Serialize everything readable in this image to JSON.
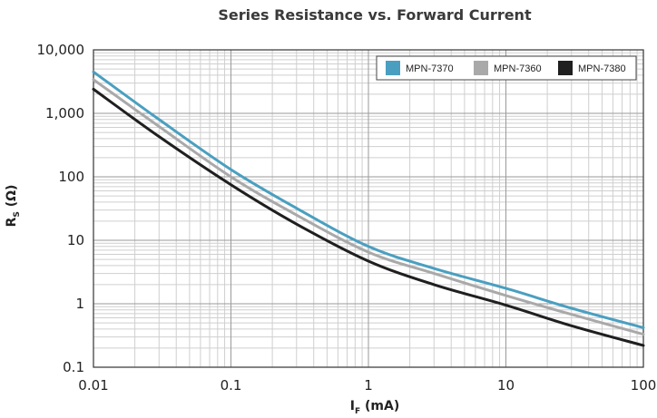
{
  "chart_data": {
    "type": "line",
    "title": "Series Resistance vs. Forward Current",
    "xlabel": {
      "main": "I",
      "sub": "F",
      "unit": " (mA)"
    },
    "ylabel": {
      "main": "R",
      "sub": "S",
      "unit": " (Ω)"
    },
    "xscale": "log",
    "yscale": "log",
    "xlim": [
      0.01,
      100
    ],
    "ylim": [
      0.1,
      10000
    ],
    "x_ticks": [
      {
        "value": 0.01,
        "label": "0.01"
      },
      {
        "value": 0.1,
        "label": "0.1"
      },
      {
        "value": 1,
        "label": "1"
      },
      {
        "value": 10,
        "label": "10"
      },
      {
        "value": 100,
        "label": "100"
      }
    ],
    "y_ticks": [
      {
        "value": 0.1,
        "label": "0.1"
      },
      {
        "value": 1,
        "label": "1"
      },
      {
        "value": 10,
        "label": "10"
      },
      {
        "value": 100,
        "label": "100"
      },
      {
        "value": 1000,
        "label": "1,000"
      },
      {
        "value": 10000,
        "label": "10,000"
      }
    ],
    "grid": true,
    "legend_position": "top-right",
    "series": [
      {
        "name": "MPN-7370",
        "color": "#4a9fc0",
        "x": [
          0.01,
          0.03,
          0.1,
          0.3,
          1,
          3,
          10,
          30,
          100
        ],
        "y": [
          4500,
          800,
          130,
          32,
          8,
          3.6,
          1.75,
          0.85,
          0.42
        ]
      },
      {
        "name": "MPN-7360",
        "color": "#a9a9a9",
        "x": [
          0.01,
          0.03,
          0.1,
          0.3,
          1,
          3,
          10,
          30,
          100
        ],
        "y": [
          3400,
          620,
          100,
          25,
          6.5,
          3.0,
          1.35,
          0.68,
          0.33
        ]
      },
      {
        "name": "MPN-7380",
        "color": "#1f1f1f",
        "x": [
          0.01,
          0.03,
          0.1,
          0.3,
          1,
          3,
          10,
          30,
          100
        ],
        "y": [
          2400,
          430,
          75,
          18,
          4.7,
          2.0,
          0.95,
          0.45,
          0.22
        ]
      }
    ]
  }
}
